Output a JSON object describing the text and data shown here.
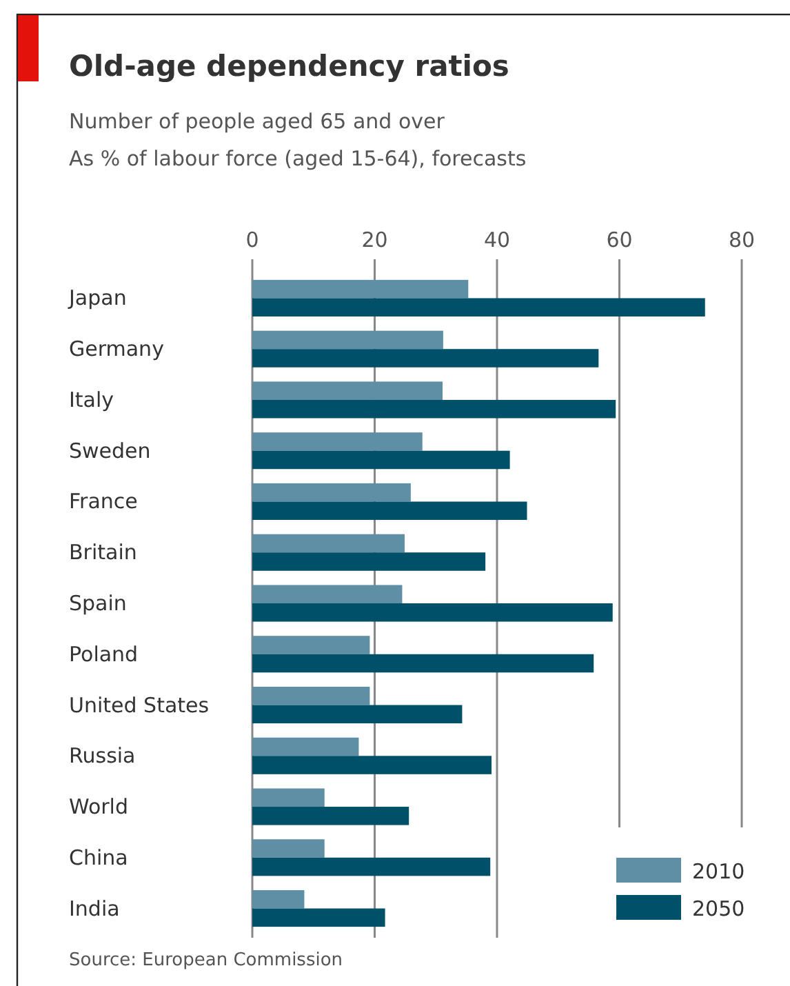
{
  "chart_data": {
    "type": "bar",
    "orientation": "horizontal",
    "title": "Old-age dependency ratios",
    "subtitle": "Number of people aged 65 and over\nAs % of labour force (aged 15-64), forecasts",
    "categories": [
      "Japan",
      "Germany",
      "Italy",
      "Sweden",
      "France",
      "Britain",
      "Spain",
      "Poland",
      "United States",
      "Russia",
      "World",
      "China",
      "India"
    ],
    "series": [
      {
        "name": "2010",
        "color": "#5f8fa5",
        "values": [
          35.3,
          31.2,
          31.1,
          27.8,
          25.9,
          24.9,
          24.5,
          19.2,
          19.2,
          17.4,
          11.8,
          11.8,
          8.5
        ]
      },
      {
        "name": "2050",
        "color": "#005069",
        "values": [
          74,
          56.6,
          59.4,
          42.1,
          44.9,
          38.1,
          58.9,
          55.8,
          34.3,
          39.1,
          25.6,
          38.9,
          21.7
        ]
      }
    ],
    "xlim": [
      0,
      80
    ],
    "xticks": [
      0,
      20,
      40,
      60,
      80
    ],
    "grid": "x",
    "legend": "bottom right",
    "annotations": [
      "Source: European Commission"
    ]
  }
}
